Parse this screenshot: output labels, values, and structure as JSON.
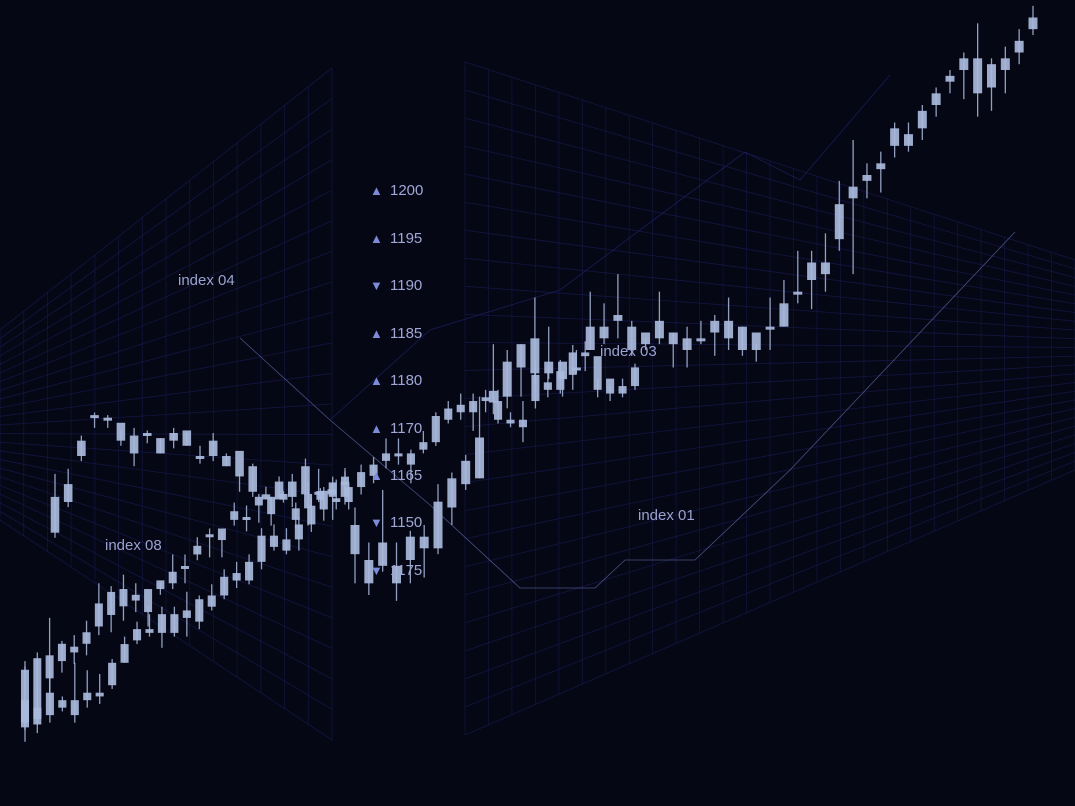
{
  "colors": {
    "background": "#060715",
    "grid": "#1d2266",
    "candle": "#a9badc",
    "indicator": "#7c8cd9",
    "text": "#9fa8d6"
  },
  "tickers": [
    {
      "direction": "up",
      "value": "1200"
    },
    {
      "direction": "up",
      "value": "1195"
    },
    {
      "direction": "down",
      "value": "1190"
    },
    {
      "direction": "up",
      "value": "1185"
    },
    {
      "direction": "up",
      "value": "1180"
    },
    {
      "direction": "up",
      "value": "1170"
    },
    {
      "direction": "up",
      "value": "1165"
    },
    {
      "direction": "down",
      "value": "1150"
    },
    {
      "direction": "down",
      "value": "1175"
    }
  ],
  "icons": {
    "up": "triangle-up-icon",
    "down": "triangle-down-icon"
  },
  "chart_data": {
    "type": "candlestick",
    "series": [
      {
        "name": "index 08",
        "candles": [
          [
            20,
            40,
            43,
            15
          ],
          [
            21,
            44,
            46,
            18
          ],
          [
            37,
            45,
            58,
            32
          ],
          [
            43,
            49,
            50,
            39
          ],
          [
            46,
            48,
            52,
            42
          ],
          [
            49,
            53,
            57,
            45
          ],
          [
            55,
            63,
            70,
            52
          ],
          [
            59,
            67,
            69,
            53
          ],
          [
            62,
            68,
            73,
            57
          ],
          [
            64,
            66,
            70,
            60
          ],
          [
            68,
            60,
            62,
            55
          ],
          [
            71,
            68,
            70,
            66
          ],
          [
            70,
            74,
            80,
            68
          ],
          [
            76,
            75,
            80,
            70
          ],
          [
            80,
            83,
            86,
            78
          ],
          [
            86,
            87,
            89,
            79
          ],
          [
            89,
            85,
            88,
            79
          ],
          [
            92,
            95,
            98,
            90
          ],
          [
            93,
            92,
            97,
            88
          ],
          [
            97,
            100,
            101,
            91
          ],
          [
            100,
            94,
            100,
            90
          ],
          [
            99,
            101,
            102,
            98
          ],
          [
            96,
            92,
            98,
            89
          ],
          [
            96,
            101,
            105,
            90
          ],
          [
            102,
            99,
            103,
            96
          ],
          [
            100,
            105,
            107,
            92
          ],
          [
            107,
            104,
            110,
            99
          ]
        ]
      },
      {
        "name": "index 04",
        "candles": [
          [
            42,
            56,
            65,
            40
          ],
          [
            54,
            61,
            67,
            52
          ],
          [
            72,
            78,
            80,
            70
          ],
          [
            87,
            88,
            89,
            83
          ],
          [
            87,
            87,
            88,
            83
          ],
          [
            85,
            78,
            82,
            76
          ],
          [
            80,
            73,
            83,
            68
          ],
          [
            81,
            80,
            82,
            77
          ],
          [
            79,
            73,
            79,
            73
          ],
          [
            78,
            81,
            83,
            75
          ],
          [
            82,
            76,
            81,
            76
          ],
          [
            71,
            72,
            76,
            69
          ],
          [
            72,
            78,
            81,
            70
          ],
          [
            72,
            68,
            73,
            68
          ],
          [
            74,
            64,
            65,
            58
          ],
          [
            58,
            68,
            69,
            56
          ],
          [
            57,
            55,
            60,
            55
          ],
          [
            55,
            62,
            64,
            56
          ],
          [
            56,
            62,
            65,
            52
          ],
          [
            68,
            57,
            71,
            57
          ],
          [
            58,
            58,
            67,
            54
          ],
          [
            57,
            59,
            61,
            56
          ],
          [
            62,
            56,
            66,
            53
          ]
        ]
      },
      {
        "name": "index 03",
        "candles": [
          [
            25,
            30,
            33,
            20
          ],
          [
            24,
            20,
            27,
            18
          ],
          [
            23,
            27,
            36,
            22
          ],
          [
            20,
            23,
            27,
            17
          ],
          [
            24,
            28,
            29,
            20
          ],
          [
            28,
            26,
            30,
            21
          ],
          [
            26,
            34,
            37,
            25
          ],
          [
            33,
            38,
            39,
            30
          ],
          [
            41,
            37,
            42,
            36
          ],
          [
            38,
            45,
            52,
            38
          ],
          [
            51,
            53,
            61,
            49
          ],
          [
            52,
            58,
            60,
            50
          ],
          [
            61,
            57,
            61,
            52
          ],
          [
            56,
            62,
            69,
            54
          ],
          [
            56,
            58,
            64,
            55
          ],
          [
            58,
            55,
            56,
            52
          ],
          [
            57,
            57,
            60,
            56
          ],
          [
            60,
            64,
            70,
            60
          ],
          [
            62,
            64,
            68,
            61
          ],
          [
            66,
            65,
            73,
            62
          ],
          [
            64,
            60,
            65,
            59
          ],
          [
            61,
            63,
            62,
            60
          ],
          [
            62,
            65,
            70,
            61
          ],
          [
            63,
            61,
            63,
            57
          ],
          [
            60,
            62,
            64,
            57
          ],
          [
            62,
            62,
            65,
            61
          ],
          [
            63,
            65,
            66,
            59
          ],
          [
            62,
            65,
            69,
            60
          ],
          [
            64,
            60,
            64,
            59
          ],
          [
            63,
            60,
            61,
            58
          ],
          [
            64,
            64,
            69,
            60
          ],
          [
            64,
            68,
            72,
            64
          ],
          [
            70,
            70,
            77,
            68
          ],
          [
            72,
            75,
            77,
            67
          ],
          [
            75,
            73,
            80,
            70
          ],
          [
            79,
            85,
            89,
            77
          ],
          [
            86,
            88,
            96,
            73
          ],
          [
            90,
            89,
            92,
            86
          ],
          [
            91,
            92,
            94,
            87
          ],
          [
            95,
            98,
            99,
            93
          ],
          [
            97,
            95,
            99,
            94
          ],
          [
            98,
            101,
            102,
            96
          ],
          [
            102,
            104,
            105,
            100
          ],
          [
            107,
            106,
            108,
            104
          ],
          [
            108,
            110,
            111,
            103
          ],
          [
            110,
            104,
            116,
            100
          ],
          [
            109,
            105,
            110,
            101
          ],
          [
            108,
            110,
            112,
            104
          ],
          [
            111,
            113,
            115,
            109
          ],
          [
            115,
            117,
            119,
            114
          ]
        ]
      },
      {
        "name": "index 01",
        "candles": [
          [
            10,
            16,
            25,
            8
          ],
          [
            14,
            11,
            19,
            10
          ],
          [
            12,
            18,
            24,
            10
          ],
          [
            16,
            14,
            17,
            13
          ],
          [
            12,
            16,
            26,
            10
          ],
          [
            18,
            16,
            24,
            14
          ],
          [
            17,
            18,
            23,
            15
          ],
          [
            20,
            26,
            27,
            19
          ],
          [
            26,
            31,
            33,
            26
          ],
          [
            32,
            35,
            37,
            31
          ],
          [
            35,
            34,
            39,
            33
          ],
          [
            34,
            39,
            41,
            30
          ],
          [
            39,
            34,
            41,
            33
          ],
          [
            40,
            38,
            45,
            33
          ],
          [
            37,
            43,
            44,
            35
          ],
          [
            41,
            44,
            47,
            40
          ],
          [
            44,
            49,
            51,
            43
          ],
          [
            50,
            48,
            53,
            46
          ],
          [
            48,
            53,
            55,
            47
          ],
          [
            53,
            60,
            62,
            51
          ],
          [
            60,
            57,
            63,
            56
          ],
          [
            56,
            59,
            62,
            55
          ],
          [
            59,
            63,
            65,
            56
          ],
          [
            63,
            68,
            70,
            61
          ],
          [
            67,
            72,
            73,
            64
          ],
          [
            70,
            69,
            75,
            67
          ],
          [
            69,
            73,
            74,
            67
          ],
          [
            73,
            77,
            79,
            71
          ],
          [
            76,
            79,
            81,
            74
          ],
          [
            80,
            82,
            86,
            78
          ],
          [
            82,
            82,
            86,
            79
          ],
          [
            82,
            79,
            83,
            74
          ],
          [
            83,
            85,
            88,
            82
          ],
          [
            85,
            92,
            93,
            84
          ],
          [
            91,
            94,
            96,
            90
          ],
          [
            95,
            93,
            98,
            91
          ],
          [
            93,
            96,
            98,
            88
          ],
          [
            97,
            96,
            99,
            93
          ],
          [
            96,
            91,
            99,
            90
          ],
          [
            91,
            90,
            93,
            89
          ],
          [
            89,
            91,
            96,
            85
          ],
          [
            96,
            103,
            107,
            94
          ],
          [
            101,
            99,
            105,
            97
          ],
          [
            99,
            104,
            107,
            98
          ],
          [
            103,
            109,
            111,
            99
          ],
          [
            109,
            108,
            112,
            104
          ],
          [
            108,
            99,
            102,
            97
          ],
          [
            102,
            98,
            100,
            96
          ],
          [
            98,
            100,
            102,
            97
          ],
          [
            100,
            105,
            106,
            99
          ]
        ]
      }
    ]
  }
}
